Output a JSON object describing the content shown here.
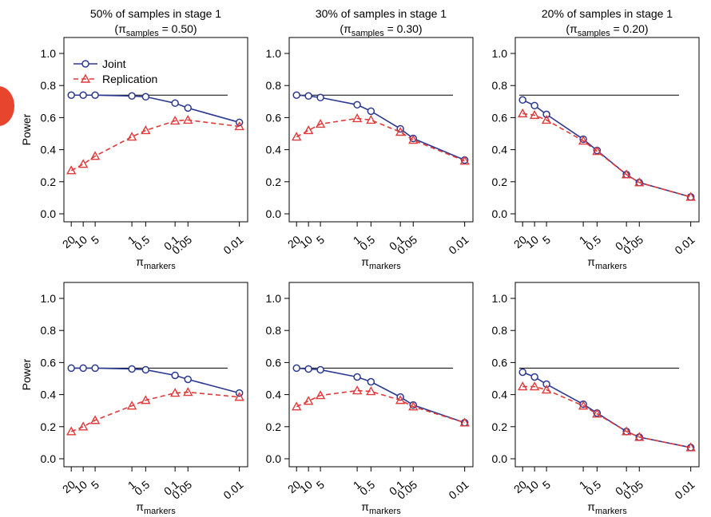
{
  "colors": {
    "joint": "#2b3990",
    "replication": "#e03a3a",
    "reference": "#000000",
    "axis": "#000000",
    "badge": "#e8452f"
  },
  "legend": {
    "joint": "Joint",
    "replication": "Replication",
    "placement": "top-left"
  },
  "x_ticks": [
    "20",
    "10",
    "5",
    "1",
    "0.5",
    "0.1",
    "0.05",
    "0.01"
  ],
  "y_ticks": [
    "0.0",
    "0.2",
    "0.4",
    "0.6",
    "0.8",
    "1.0"
  ],
  "chart_data": [
    {
      "type": "line",
      "title": "50% of samples in stage 1",
      "subtitle": "(π",
      "subtitle_sub": "samples",
      "subtitle_end": " = 0.50)",
      "xlabel": "π",
      "xlabel_sub": "markers",
      "ylabel": "Power",
      "x": [
        20,
        10,
        5,
        1,
        0.5,
        0.1,
        0.05,
        0.01
      ],
      "x_scale": "log-reversed",
      "ylim": [
        0,
        1
      ],
      "reference_line": 0.74,
      "series": [
        {
          "name": "Joint",
          "marker": "circle",
          "values": [
            0.74,
            0.74,
            0.74,
            0.735,
            0.73,
            0.69,
            0.66,
            0.57
          ]
        },
        {
          "name": "Replication",
          "marker": "triangle",
          "values": [
            0.27,
            0.31,
            0.36,
            0.48,
            0.52,
            0.58,
            0.585,
            0.545
          ]
        }
      ]
    },
    {
      "type": "line",
      "title": "30% of samples in stage 1",
      "subtitle": "(π",
      "subtitle_sub": "samples",
      "subtitle_end": " = 0.30)",
      "xlabel": "π",
      "xlabel_sub": "markers",
      "ylabel": "",
      "x": [
        20,
        10,
        5,
        1,
        0.5,
        0.1,
        0.05,
        0.01
      ],
      "x_scale": "log-reversed",
      "ylim": [
        0,
        1
      ],
      "reference_line": 0.74,
      "series": [
        {
          "name": "Joint",
          "marker": "circle",
          "values": [
            0.74,
            0.735,
            0.725,
            0.68,
            0.64,
            0.53,
            0.47,
            0.335
          ]
        },
        {
          "name": "Replication",
          "marker": "triangle",
          "values": [
            0.48,
            0.52,
            0.56,
            0.595,
            0.585,
            0.51,
            0.46,
            0.33
          ]
        }
      ]
    },
    {
      "type": "line",
      "title": "20% of samples in stage 1",
      "subtitle": "(π",
      "subtitle_sub": "samples",
      "subtitle_end": " = 0.20)",
      "xlabel": "π",
      "xlabel_sub": "markers",
      "ylabel": "",
      "x": [
        20,
        10,
        5,
        1,
        0.5,
        0.1,
        0.05,
        0.01
      ],
      "x_scale": "log-reversed",
      "ylim": [
        0,
        1
      ],
      "reference_line": 0.74,
      "series": [
        {
          "name": "Joint",
          "marker": "circle",
          "values": [
            0.71,
            0.675,
            0.62,
            0.465,
            0.395,
            0.245,
            0.195,
            0.105
          ]
        },
        {
          "name": "Replication",
          "marker": "triangle",
          "values": [
            0.625,
            0.615,
            0.585,
            0.455,
            0.39,
            0.245,
            0.195,
            0.105
          ]
        }
      ]
    },
    {
      "type": "line",
      "title": "",
      "subtitle": "",
      "subtitle_sub": "",
      "subtitle_end": "",
      "xlabel": "π",
      "xlabel_sub": "markers",
      "ylabel": "Power",
      "x": [
        20,
        10,
        5,
        1,
        0.5,
        0.1,
        0.05,
        0.01
      ],
      "x_scale": "log-reversed",
      "ylim": [
        0,
        1
      ],
      "reference_line": 0.565,
      "series": [
        {
          "name": "Joint",
          "marker": "circle",
          "values": [
            0.565,
            0.565,
            0.565,
            0.56,
            0.555,
            0.52,
            0.495,
            0.41
          ]
        },
        {
          "name": "Replication",
          "marker": "triangle",
          "values": [
            0.17,
            0.2,
            0.24,
            0.33,
            0.365,
            0.41,
            0.415,
            0.385
          ]
        }
      ]
    },
    {
      "type": "line",
      "title": "",
      "subtitle": "",
      "subtitle_sub": "",
      "subtitle_end": "",
      "xlabel": "π",
      "xlabel_sub": "markers",
      "ylabel": "",
      "x": [
        20,
        10,
        5,
        1,
        0.5,
        0.1,
        0.05,
        0.01
      ],
      "x_scale": "log-reversed",
      "ylim": [
        0,
        1
      ],
      "reference_line": 0.565,
      "series": [
        {
          "name": "Joint",
          "marker": "circle",
          "values": [
            0.565,
            0.56,
            0.555,
            0.51,
            0.48,
            0.385,
            0.335,
            0.225
          ]
        },
        {
          "name": "Replication",
          "marker": "triangle",
          "values": [
            0.325,
            0.36,
            0.395,
            0.425,
            0.42,
            0.365,
            0.325,
            0.225
          ]
        }
      ]
    },
    {
      "type": "line",
      "title": "",
      "subtitle": "",
      "subtitle_sub": "",
      "subtitle_end": "",
      "xlabel": "π",
      "xlabel_sub": "markers",
      "ylabel": "",
      "x": [
        20,
        10,
        5,
        1,
        0.5,
        0.1,
        0.05,
        0.01
      ],
      "x_scale": "log-reversed",
      "ylim": [
        0,
        1
      ],
      "reference_line": 0.565,
      "series": [
        {
          "name": "Joint",
          "marker": "circle",
          "values": [
            0.54,
            0.51,
            0.465,
            0.34,
            0.285,
            0.17,
            0.135,
            0.07
          ]
        },
        {
          "name": "Replication",
          "marker": "triangle",
          "values": [
            0.45,
            0.45,
            0.43,
            0.33,
            0.28,
            0.17,
            0.135,
            0.07
          ]
        }
      ]
    }
  ]
}
